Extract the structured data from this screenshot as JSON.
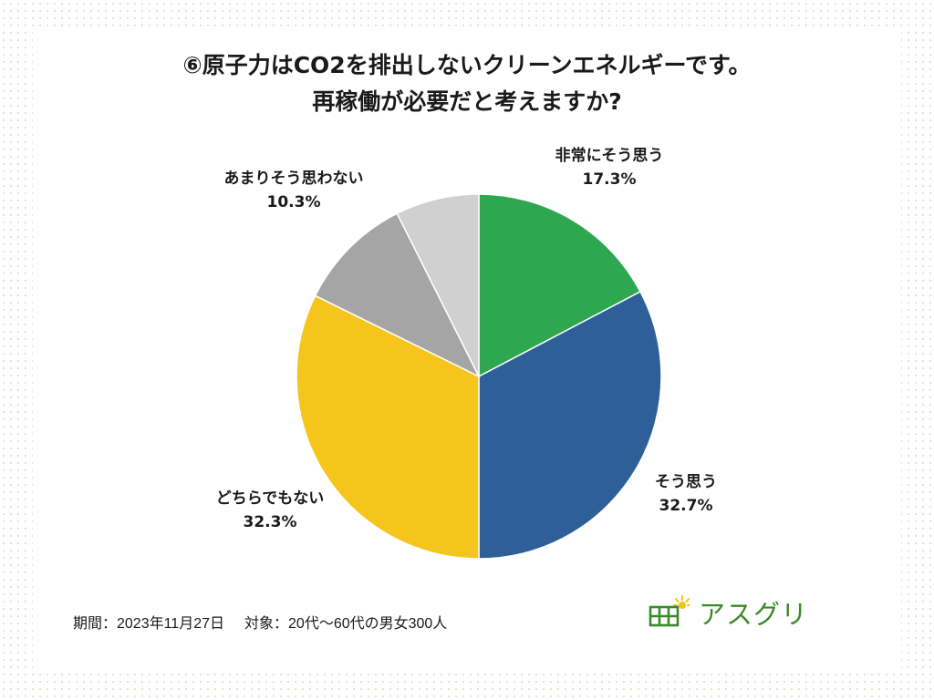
{
  "title": {
    "line1": "⑥原子力はCO2を排出しないクリーンエネルギーです。",
    "line2": "再稼働が必要だと考えますか?"
  },
  "footer": {
    "period_label": "期間：2023年11月27日",
    "target_label": "対象：20代〜60代の男女300人"
  },
  "logo": {
    "text": "アスグリ",
    "icon": "solar-panel-sun-icon",
    "color": "#3c8a2e"
  },
  "chart_data": {
    "type": "pie",
    "start_angle_deg": 0,
    "direction": "clockwise",
    "slices": [
      {
        "label": "非常にそう思う",
        "value": 17.3,
        "value_text": "17.3%",
        "color": "#2fa650"
      },
      {
        "label": "そう思う",
        "value": 32.7,
        "value_text": "32.7%",
        "color": "#2e5f98"
      },
      {
        "label": "どちらでもない",
        "value": 32.3,
        "value_text": "32.3%",
        "color": "#f6c51c"
      },
      {
        "label": "あまりそう思わない",
        "value": 10.3,
        "value_text": "10.3%",
        "color": "#a5a5a5"
      },
      {
        "label": "",
        "value": 7.4,
        "value_text": "",
        "color": "#d0d0d0"
      }
    ]
  }
}
